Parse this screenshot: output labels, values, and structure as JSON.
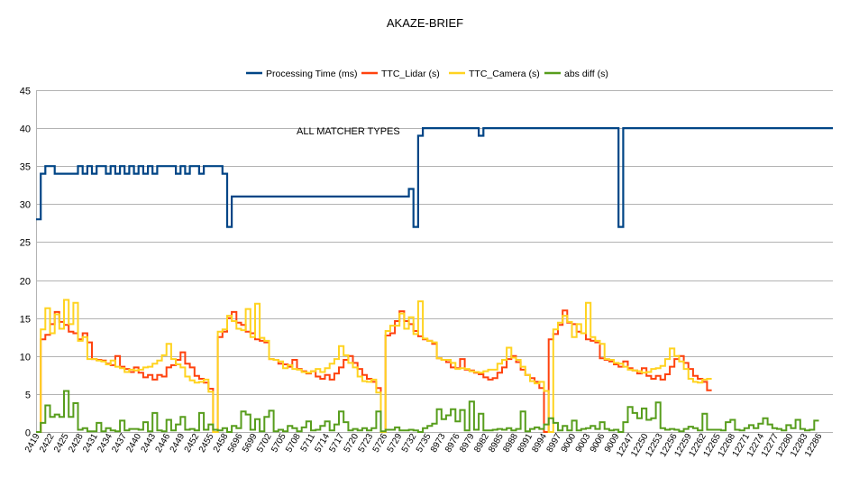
{
  "chart_data": {
    "type": "line",
    "title": "AKAZE-BRIEF",
    "annotation": "ALL MATCHER TYPES",
    "ylim": [
      0,
      45
    ],
    "yticks": [
      0,
      5,
      10,
      15,
      20,
      25,
      30,
      35,
      40,
      45
    ],
    "grid": true,
    "legend_position": "top",
    "x_tick_labels": [
      "2419",
      "2422",
      "2425",
      "2428",
      "2431",
      "2434",
      "2437",
      "2440",
      "2443",
      "2446",
      "2449",
      "2452",
      "2455",
      "2458",
      "5696",
      "5699",
      "5702",
      "5705",
      "5708",
      "5711",
      "5714",
      "5717",
      "5720",
      "5723",
      "5726",
      "5729",
      "5732",
      "5735",
      "8973",
      "8976",
      "8979",
      "8982",
      "8985",
      "8988",
      "8991",
      "8994",
      "8997",
      "9000",
      "9003",
      "9006",
      "9009",
      "12247",
      "12250",
      "12253",
      "12256",
      "12259",
      "12262",
      "12265",
      "12268",
      "12271",
      "12274",
      "12277",
      "12280",
      "12283",
      "12286"
    ],
    "series": [
      {
        "name": "Processing Time (ms)",
        "color": "#004586",
        "values": [
          28,
          34,
          35,
          35,
          34,
          34,
          34,
          34,
          34,
          35,
          34,
          35,
          34,
          35,
          35,
          34,
          35,
          34,
          35,
          34,
          35,
          34,
          35,
          34,
          35,
          34,
          35,
          35,
          35,
          35,
          34,
          35,
          34,
          35,
          35,
          34,
          35,
          35,
          35,
          35,
          34,
          27,
          31,
          31,
          31,
          31,
          31,
          31,
          31,
          31,
          31,
          31,
          31,
          31,
          31,
          31,
          31,
          31,
          31,
          31,
          31,
          31,
          31,
          31,
          31,
          31,
          31,
          31,
          31,
          31,
          31,
          31,
          31,
          31,
          31,
          31,
          31,
          31,
          31,
          31,
          32,
          27,
          39,
          40,
          40,
          40,
          40,
          40,
          40,
          40,
          40,
          40,
          40,
          40,
          40,
          39,
          40,
          40,
          40,
          40,
          40,
          40,
          40,
          40,
          40,
          40,
          40,
          40,
          40,
          40,
          40,
          40,
          40,
          40,
          40,
          40,
          40,
          40,
          40,
          40,
          40,
          40,
          40,
          40,
          40,
          27,
          40,
          40,
          40,
          40,
          40,
          40,
          40,
          40,
          40,
          40,
          40,
          40,
          40,
          40,
          40,
          40,
          40,
          40,
          40,
          40,
          40,
          40,
          40,
          40,
          40,
          40,
          40,
          40,
          40,
          40,
          40,
          40,
          40,
          40,
          40,
          40,
          40,
          40,
          40,
          40,
          40,
          40,
          40,
          40,
          40
        ]
      },
      {
        "name": "TTC_Lidar (s)",
        "color": "#ff420e",
        "values": [
          0,
          12.2,
          12.8,
          14.2,
          15.8,
          14.5,
          14.1,
          13.2,
          13.0,
          12.2,
          13.0,
          11.8,
          9.6,
          9.5,
          9.4,
          9.0,
          8.8,
          10.0,
          8.6,
          8.3,
          7.9,
          8.5,
          7.8,
          7.2,
          7.5,
          6.9,
          7.5,
          7.3,
          8.5,
          8.8,
          9.5,
          10.5,
          9.0,
          8.5,
          7.4,
          7.0,
          6.5,
          5.7,
          0,
          12.5,
          13.2,
          15.0,
          15.8,
          14.4,
          14.1,
          13.2,
          13.0,
          12.2,
          12.0,
          11.8,
          9.6,
          9.5,
          9.0,
          8.9,
          8.6,
          9.5,
          8.3,
          8.0,
          7.7,
          8.0,
          7.3,
          7.0,
          7.5,
          6.9,
          7.7,
          8.5,
          9.5,
          10.0,
          9.1,
          8.3,
          7.5,
          7.0,
          6.6,
          5.8,
          0,
          12.7,
          13.0,
          14.6,
          15.9,
          14.6,
          14.2,
          13.3,
          12.6,
          12.2,
          12.0,
          11.6,
          9.7,
          9.5,
          9.2,
          8.5,
          8.4,
          9.6,
          8.2,
          8.1,
          7.8,
          7.6,
          7.2,
          6.9,
          7.1,
          7.8,
          8.5,
          9.6,
          10.0,
          9.2,
          8.2,
          7.5,
          7.1,
          6.6,
          5.8,
          0,
          12.2,
          12.9,
          14.1,
          16.0,
          14.4,
          14.2,
          13.2,
          13.0,
          12.2,
          12.0,
          11.8,
          9.7,
          9.5,
          9.3,
          8.9,
          8.6,
          9.3,
          8.4,
          8.1,
          7.7,
          8.4,
          7.4,
          7.0,
          7.4,
          6.9,
          7.6,
          8.6,
          9.6,
          10.0,
          9.1,
          8.3,
          7.4,
          7.0,
          6.6,
          5.5
        ]
      },
      {
        "name": "TTC_Camera (s)",
        "color": "#ffd320",
        "values": [
          0,
          13.5,
          16.3,
          13.0,
          15.5,
          13.6,
          17.4,
          14.2,
          17.0,
          12.0,
          12.5,
          9.6,
          9.6,
          9.4,
          9.3,
          8.9,
          9.4,
          8.6,
          8.4,
          7.9,
          8.2,
          8.1,
          8.2,
          8.5,
          8.6,
          9.0,
          9.4,
          10.1,
          11.6,
          9.6,
          8.9,
          8.5,
          7.3,
          6.8,
          6.5,
          6.6,
          6.9,
          5.3,
          0,
          13.2,
          13.5,
          15.3,
          14.6,
          13.6,
          13.4,
          16.2,
          12.5,
          16.9,
          12.4,
          12.0,
          9.6,
          9.5,
          9.3,
          8.4,
          8.8,
          8.3,
          8.2,
          7.9,
          7.8,
          8.0,
          8.3,
          7.9,
          8.4,
          9.0,
          9.6,
          11.3,
          10.1,
          9.1,
          8.5,
          7.3,
          6.7,
          6.6,
          6.9,
          5.2,
          0,
          13.3,
          14.0,
          14.0,
          15.6,
          13.6,
          15.1,
          12.9,
          17.2,
          12.3,
          12.0,
          11.8,
          9.7,
          9.5,
          9.5,
          9.1,
          8.3,
          8.4,
          8.3,
          8.0,
          7.9,
          7.8,
          8.0,
          8.2,
          8.2,
          9.0,
          9.5,
          11.1,
          9.8,
          9.5,
          8.6,
          7.5,
          6.7,
          6.4,
          6.6,
          5.4,
          0,
          13.5,
          14.4,
          15.3,
          14.5,
          12.5,
          14.2,
          13.0,
          17.0,
          12.5,
          12.0,
          11.6,
          9.6,
          9.5,
          9.1,
          9.0,
          8.6,
          8.2,
          8.1,
          8.0,
          7.8,
          7.9,
          8.3,
          8.4,
          8.7,
          9.6,
          11.0,
          10.0,
          9.3,
          8.3,
          7.0,
          6.6,
          6.5,
          6.9,
          7.0
        ]
      },
      {
        "name": "abs diff (s)",
        "color": "#579d1c",
        "values": [
          0,
          1.2,
          3.5,
          2.0,
          2.3,
          2.0,
          5.4,
          2.0,
          3.8,
          0.3,
          0.5,
          0.1,
          0.1,
          1.2,
          0.1,
          0.5,
          0.2,
          0.1,
          1.5,
          0.2,
          0.4,
          0.4,
          0.3,
          1.3,
          0.1,
          2.5,
          0.2,
          0.1,
          1.6,
          0.2,
          1.0,
          2.0,
          0.3,
          0.4,
          0.2,
          2.5,
          0.3,
          1.0,
          0.3,
          0.2,
          0.5,
          0.0,
          0.8,
          0.5,
          2.7,
          2.3,
          0.3,
          1.7,
          0.1,
          2.0,
          2.8,
          0.1,
          0.3,
          0.1,
          0.8,
          0.5,
          0.1,
          0.6,
          1.4,
          0.2,
          0.3,
          0.8,
          1.4,
          0.2,
          1.0,
          2.7,
          1.3,
          0.2,
          0.4,
          0.2,
          0.5,
          0.2,
          0.5,
          2.7,
          0.1,
          0.3,
          0.3,
          0.6,
          0.2,
          0.2,
          0.3,
          0.2,
          0.0,
          0.5,
          0.8,
          1.1,
          3.0,
          1.7,
          2.2,
          3.0,
          1.4,
          2.9,
          0.2,
          4.0,
          0.3,
          2.4,
          0.2,
          0.2,
          0.3,
          0.4,
          0.3,
          0.5,
          0.2,
          0.4,
          2.7,
          0.1,
          0.4,
          0.6,
          0.4,
          1.0,
          1.8,
          1.2,
          0.2,
          0.8,
          0.2,
          1.5,
          0.2,
          0.4,
          0.5,
          0.8,
          0.4,
          1.3,
          0.4,
          0.2,
          0.3,
          0.0,
          1.3,
          3.3,
          2.5,
          1.8,
          3.1,
          1.6,
          1.8,
          3.9,
          0.5,
          0.3,
          0.4,
          0.3,
          0.1,
          0.4,
          0.7,
          0.5,
          0.2,
          2.4,
          0.3,
          0.3,
          0.3,
          0.2,
          1.3,
          1.6,
          0.3,
          0.2,
          0.5,
          0.9,
          0.5,
          1.1,
          1.8,
          1.0,
          0.5,
          0.4,
          0.2,
          0.9,
          0.5,
          1.6,
          0.4,
          0.2,
          0.3,
          1.5
        ]
      }
    ]
  }
}
